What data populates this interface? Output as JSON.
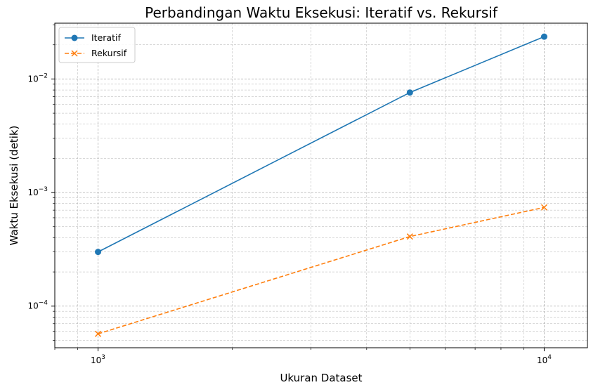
{
  "chart_data": {
    "type": "line",
    "title": "Perbandingan Waktu Eksekusi: Iteratif vs. Rekursif",
    "xlabel": "Ukuran Dataset",
    "ylabel": "Waktu Eksekusi (detik)",
    "xscale": "log",
    "yscale": "log",
    "xlim": [
      800,
      12500
    ],
    "ylim": [
      4.3e-05,
      0.031
    ],
    "x": [
      1000,
      5000,
      10000
    ],
    "series": [
      {
        "name": "Iteratif",
        "values": [
          0.0003,
          0.0076,
          0.0236
        ],
        "color": "#1f77b4",
        "marker": "circle",
        "linestyle": "solid"
      },
      {
        "name": "Rekursif",
        "values": [
          5.7e-05,
          0.00041,
          0.00074
        ],
        "color": "#ff7f0e",
        "marker": "x",
        "linestyle": "dashed"
      }
    ],
    "xticks": [
      {
        "value": 1000,
        "base": "10",
        "exp": "3"
      },
      {
        "value": 10000,
        "base": "10",
        "exp": "4"
      }
    ],
    "yticks": [
      {
        "value": 0.0001,
        "base": "10",
        "exp": "−4"
      },
      {
        "value": 0.001,
        "base": "10",
        "exp": "−3"
      },
      {
        "value": 0.01,
        "base": "10",
        "exp": "−2"
      }
    ],
    "grid": true,
    "grid_minor": true,
    "legend": "top-left"
  }
}
